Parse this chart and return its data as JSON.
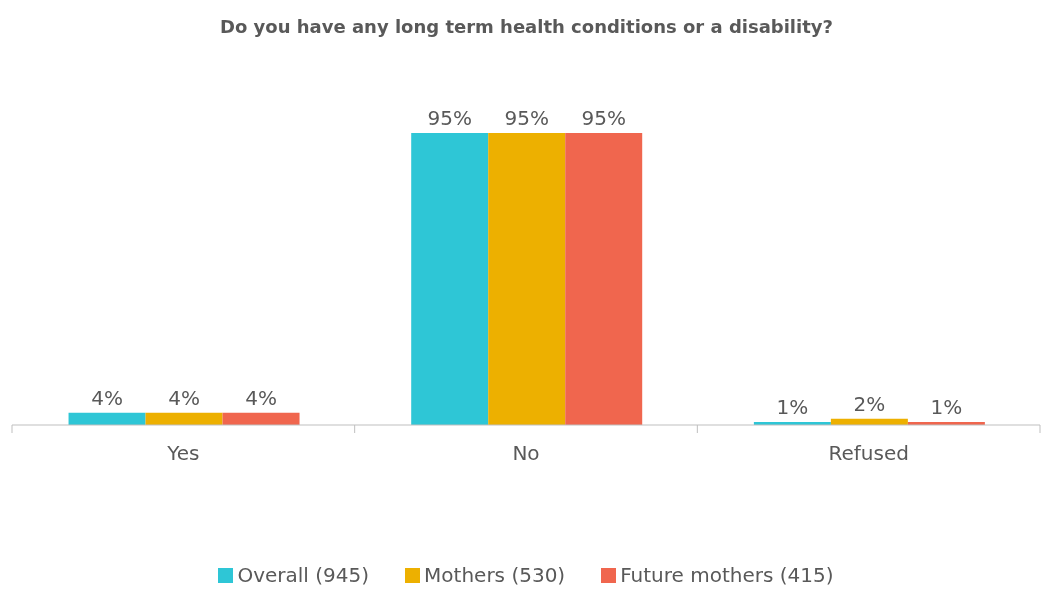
{
  "chart_data": {
    "type": "bar",
    "title": "Do you have any long term health conditions or a disability?",
    "categories": [
      "Yes",
      "No",
      "Refused"
    ],
    "series": [
      {
        "name": "Overall (945)",
        "color": "#2ec6d6",
        "values": [
          4,
          95,
          1
        ],
        "value_labels": [
          "4%",
          "95%",
          "1%"
        ]
      },
      {
        "name": "Mothers (530)",
        "color": "#edb000",
        "values": [
          4,
          95,
          2
        ],
        "value_labels": [
          "4%",
          "95%",
          "2%"
        ]
      },
      {
        "name": "Future mothers (415)",
        "color": "#f0664e",
        "values": [
          4,
          95,
          1
        ],
        "value_labels": [
          "4%",
          "95%",
          "1%"
        ]
      }
    ],
    "legend": "bottom"
  }
}
